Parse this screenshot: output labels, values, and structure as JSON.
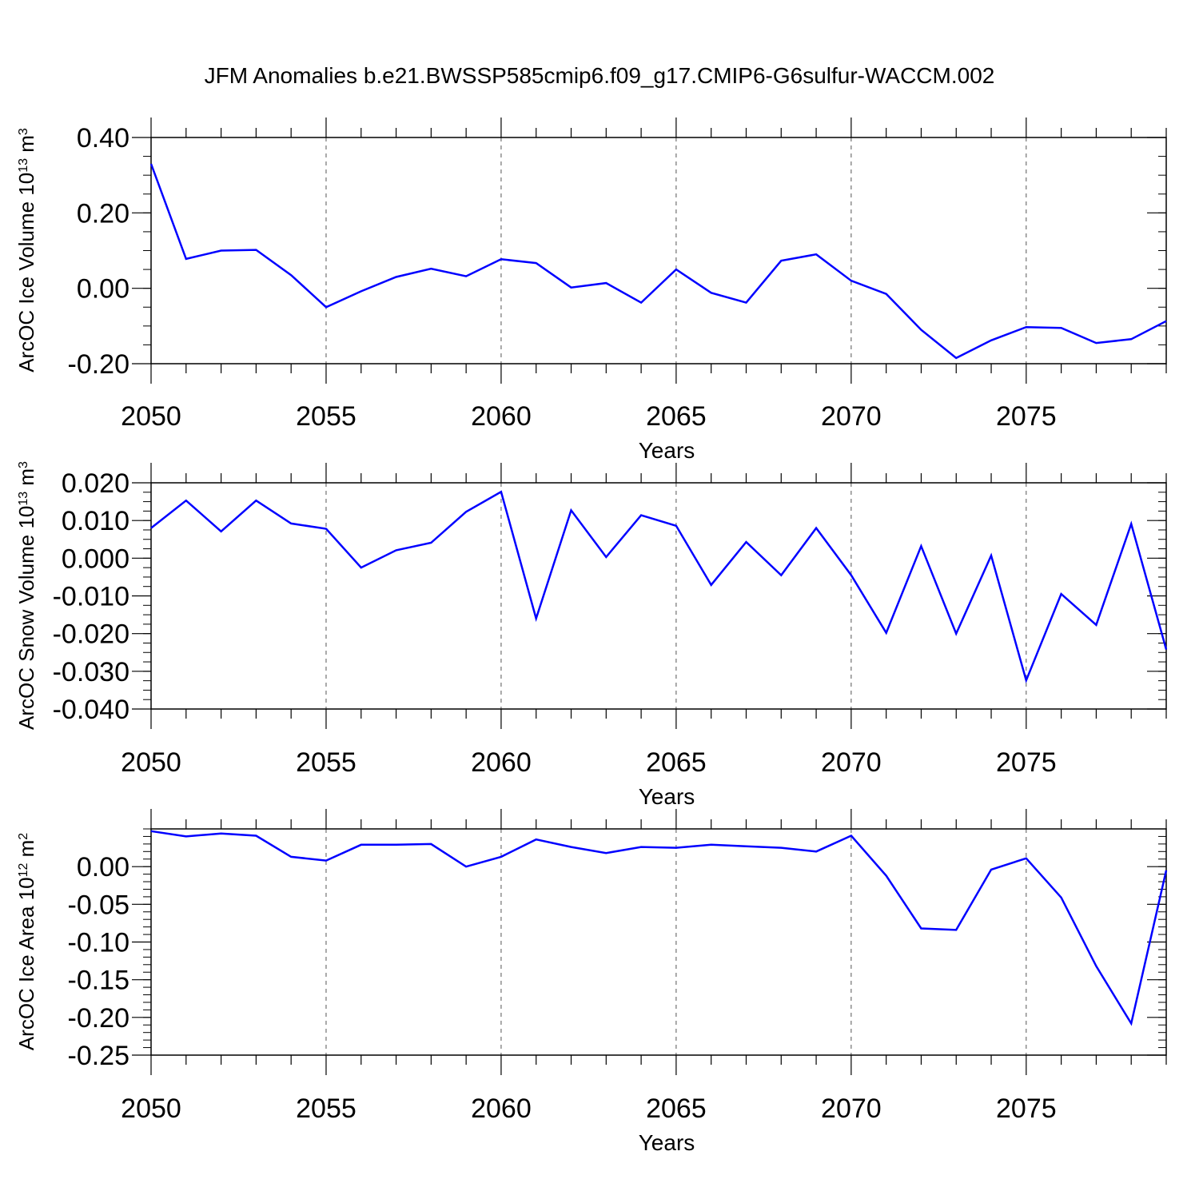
{
  "title": "JFM Anomalies b.e21.BWSSP585cmip6.f09_g17.CMIP6-G6sulfur-WACCM.002",
  "colors": {
    "series": "#0000ff",
    "axes": "#000000",
    "grid": "#555555"
  },
  "chart_data": [
    {
      "type": "line",
      "title": "JFM Anomalies b.e21.BWSSP585cmip6.f09_g17.CMIP6-G6sulfur-WACCM.002",
      "xlabel": "Years",
      "ylabel_text": "ArcOC Ice Volume 10",
      "ylabel_exp": "13",
      "ylabel_unit": "m",
      "ylabel_unit_exp": "3",
      "xlim": [
        2050,
        2079
      ],
      "ylim": [
        -0.2,
        0.4
      ],
      "xticks": [
        "2050",
        "2055",
        "2060",
        "2065",
        "2070",
        "2075"
      ],
      "yticks": [
        "0.40",
        "0.20",
        "0.00",
        "-0.20"
      ],
      "ytick_values": [
        0.4,
        0.2,
        0.0,
        -0.2
      ],
      "grid": "dashed vertical lines at major x ticks",
      "x": [
        2050,
        2051,
        2052,
        2053,
        2054,
        2055,
        2056,
        2057,
        2058,
        2059,
        2060,
        2061,
        2062,
        2063,
        2064,
        2065,
        2066,
        2067,
        2068,
        2069,
        2070,
        2071,
        2072,
        2073,
        2074,
        2075,
        2076,
        2077,
        2078,
        2079
      ],
      "series": [
        {
          "name": "ArcOC Ice Volume anomaly",
          "values": [
            0.33,
            0.078,
            0.1,
            0.102,
            0.035,
            -0.05,
            -0.008,
            0.03,
            0.052,
            0.032,
            0.077,
            0.067,
            0.002,
            0.014,
            -0.038,
            0.05,
            -0.012,
            -0.038,
            0.073,
            0.09,
            0.02,
            -0.015,
            -0.11,
            -0.185,
            -0.138,
            -0.103,
            -0.105,
            -0.145,
            -0.135,
            -0.087
          ]
        }
      ]
    },
    {
      "type": "line",
      "xlabel": "Years",
      "ylabel_text": "ArcOC Snow Volume 10",
      "ylabel_exp": "13",
      "ylabel_unit": "m",
      "ylabel_unit_exp": "3",
      "xlim": [
        2050,
        2079
      ],
      "ylim": [
        -0.04,
        0.02
      ],
      "xticks": [
        "2050",
        "2055",
        "2060",
        "2065",
        "2070",
        "2075"
      ],
      "yticks": [
        "0.020",
        "0.010",
        "0.000",
        "-0.010",
        "-0.020",
        "-0.030",
        "-0.040"
      ],
      "ytick_values": [
        0.02,
        0.01,
        0.0,
        -0.01,
        -0.02,
        -0.03,
        -0.04
      ],
      "grid": "dashed vertical lines at major x ticks",
      "x": [
        2050,
        2051,
        2052,
        2053,
        2054,
        2055,
        2056,
        2057,
        2058,
        2059,
        2060,
        2061,
        2062,
        2063,
        2064,
        2065,
        2066,
        2067,
        2068,
        2069,
        2070,
        2071,
        2072,
        2073,
        2074,
        2075,
        2076,
        2077,
        2078,
        2079
      ],
      "series": [
        {
          "name": "ArcOC Snow Volume anomaly",
          "values": [
            0.008,
            0.0153,
            0.0071,
            0.0153,
            0.0092,
            0.0078,
            -0.0025,
            0.0021,
            0.0041,
            0.0123,
            0.0176,
            -0.016,
            0.0127,
            0.0003,
            0.0114,
            0.0086,
            -0.0071,
            0.0043,
            -0.0045,
            0.008,
            -0.0045,
            -0.0198,
            0.0032,
            -0.02,
            0.0007,
            -0.0324,
            -0.0095,
            -0.0177,
            0.0091,
            -0.0242
          ]
        }
      ]
    },
    {
      "type": "line",
      "xlabel": "Years",
      "ylabel_text": "ArcOC Ice Area 10",
      "ylabel_exp": "12",
      "ylabel_unit": "m",
      "ylabel_unit_exp": "2",
      "xlim": [
        2050,
        2079
      ],
      "ylim": [
        -0.25,
        0.05
      ],
      "xticks": [
        "2050",
        "2055",
        "2060",
        "2065",
        "2070",
        "2075"
      ],
      "yticks": [
        "0.00",
        "-0.05",
        "-0.10",
        "-0.15",
        "-0.20",
        "-0.25"
      ],
      "ytick_values": [
        0.0,
        -0.05,
        -0.1,
        -0.15,
        -0.2,
        -0.25
      ],
      "grid": "dashed vertical lines at major x ticks",
      "x": [
        2050,
        2051,
        2052,
        2053,
        2054,
        2055,
        2056,
        2057,
        2058,
        2059,
        2060,
        2061,
        2062,
        2063,
        2064,
        2065,
        2066,
        2067,
        2068,
        2069,
        2070,
        2071,
        2072,
        2073,
        2074,
        2075,
        2076,
        2077,
        2078,
        2079
      ],
      "series": [
        {
          "name": "ArcOC Ice Area anomaly",
          "values": [
            0.047,
            0.04,
            0.044,
            0.041,
            0.013,
            0.008,
            0.029,
            0.029,
            0.03,
            0.0,
            0.013,
            0.036,
            0.026,
            0.018,
            0.026,
            0.025,
            0.029,
            0.027,
            0.025,
            0.02,
            0.041,
            -0.012,
            -0.082,
            -0.084,
            -0.004,
            0.011,
            -0.041,
            -0.132,
            -0.208,
            -0.005
          ]
        }
      ]
    }
  ]
}
